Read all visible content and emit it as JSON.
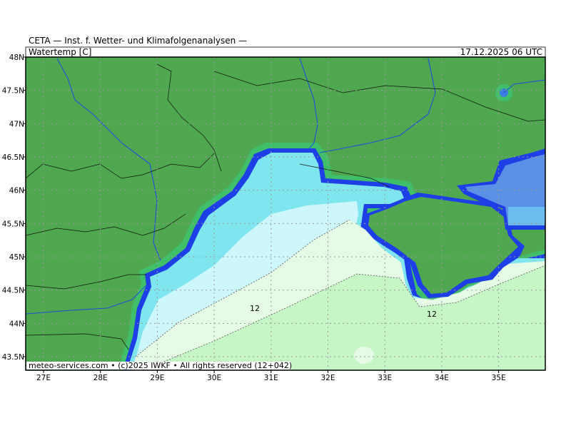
{
  "header": {
    "title": "CETA — Inst. f. Wetter- und Klimafolgenanalysen —",
    "variable": "Watertemp [C]",
    "valid_time": "17.12.2025 06 UTC"
  },
  "axes": {
    "lon_labels": [
      "27E",
      "28E",
      "29E",
      "30E",
      "31E",
      "32E",
      "33E",
      "34E",
      "35E"
    ],
    "lat_labels": [
      "48N",
      "47.5N",
      "47N",
      "46.5N",
      "46N",
      "45.5N",
      "45N",
      "44.5N",
      "44N",
      "43.5N"
    ]
  },
  "contour_labels": [
    "12",
    "12"
  ],
  "footer": {
    "credit": "meteo-services.com • (c)2025 IWKF • All rights reserved (12+042)"
  }
}
